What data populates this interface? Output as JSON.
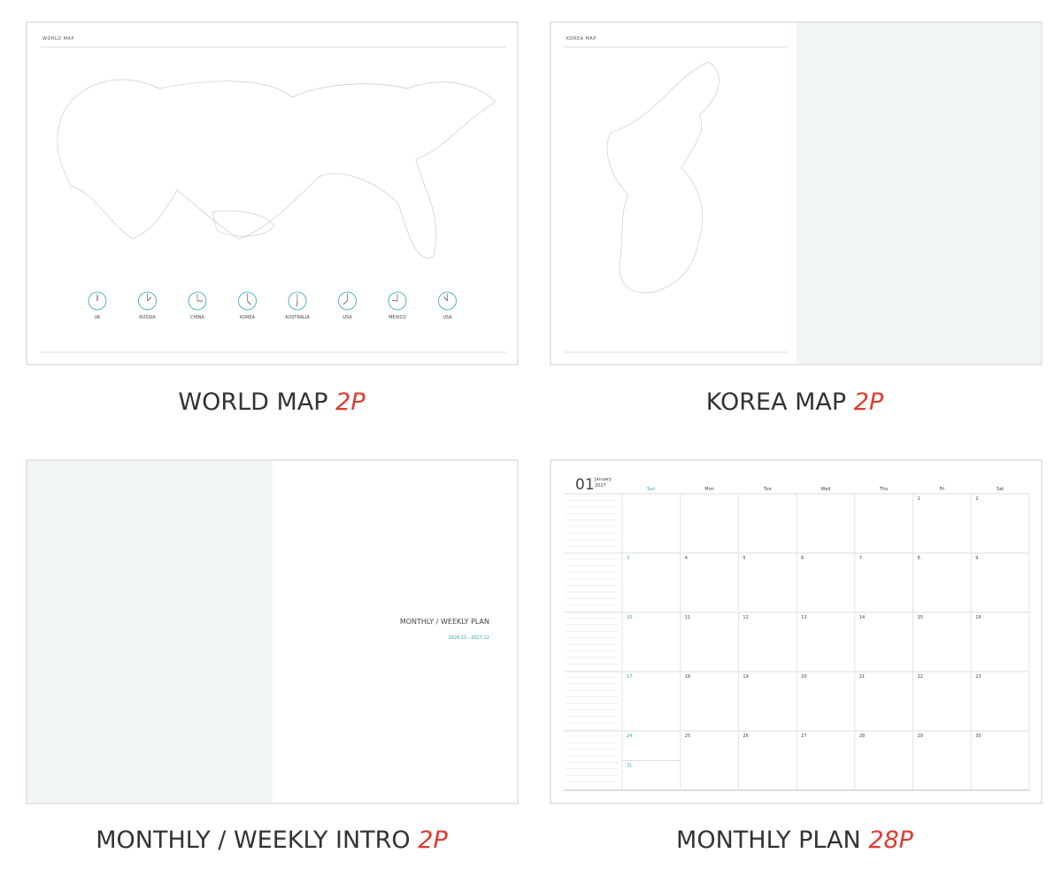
{
  "panels": [
    {
      "title": "WORLD MAP",
      "caption": "WORLD MAP",
      "pages": "2P",
      "clocks": [
        "UK",
        "RUSSIA",
        "CHINA",
        "KOREA",
        "AUSTRALIA",
        "USA",
        "MEXICO",
        "USA"
      ]
    },
    {
      "title": "KOREA MAP",
      "caption": "KOREA MAP",
      "pages": "2P"
    },
    {
      "caption": "MONTHLY / WEEKLY INTRO",
      "pages": "2P",
      "heading": "MONTHLY / WEEKLY PLAN",
      "period": "2026.11 - 2027.12"
    },
    {
      "caption": "MONTHLY PLAN",
      "pages": "28P",
      "month": "01",
      "month_name": "January",
      "year": "2027",
      "weekdays": [
        "Sun",
        "Mon",
        "Tue",
        "Wed",
        "Thu",
        "Fri",
        "Sat"
      ],
      "weeks": [
        [
          null,
          null,
          null,
          null,
          null,
          1,
          2
        ],
        [
          3,
          4,
          5,
          6,
          7,
          8,
          9
        ],
        [
          10,
          11,
          12,
          13,
          14,
          15,
          16
        ],
        [
          17,
          18,
          19,
          20,
          21,
          22,
          23
        ],
        [
          24,
          25,
          26,
          27,
          28,
          29,
          30
        ],
        [
          31,
          null,
          null,
          null,
          null,
          null,
          null
        ]
      ]
    }
  ]
}
